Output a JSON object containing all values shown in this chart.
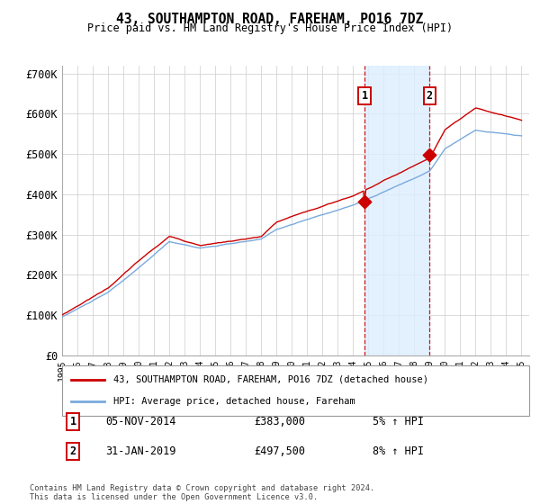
{
  "title": "43, SOUTHAMPTON ROAD, FAREHAM, PO16 7DZ",
  "subtitle": "Price paid vs. HM Land Registry's House Price Index (HPI)",
  "ylim": [
    0,
    720000
  ],
  "yticks": [
    0,
    100000,
    200000,
    300000,
    400000,
    500000,
    600000,
    700000
  ],
  "ytick_labels": [
    "£0",
    "£100K",
    "£200K",
    "£300K",
    "£400K",
    "£500K",
    "£600K",
    "£700K"
  ],
  "hpi_color": "#7aaadd",
  "price_color": "#cc0000",
  "bg_color": "#ffffff",
  "grid_color": "#cccccc",
  "sale1_price": 383000,
  "sale2_price": 497500,
  "sale1_label": "05-NOV-2014",
  "sale1_price_str": "£383,000",
  "sale1_pct": "5% ↑ HPI",
  "sale2_label": "31-JAN-2019",
  "sale2_price_str": "£497,500",
  "sale2_pct": "8% ↑ HPI",
  "legend_line1": "43, SOUTHAMPTON ROAD, FAREHAM, PO16 7DZ (detached house)",
  "legend_line2": "HPI: Average price, detached house, Fareham",
  "footer": "Contains HM Land Registry data © Crown copyright and database right 2024.\nThis data is licensed under the Open Government Licence v3.0.",
  "xstart_year": 1995,
  "xend_year": 2025,
  "sale1_year": 2014.83,
  "sale2_year": 2019.08,
  "shade_color": "#ddeeff"
}
